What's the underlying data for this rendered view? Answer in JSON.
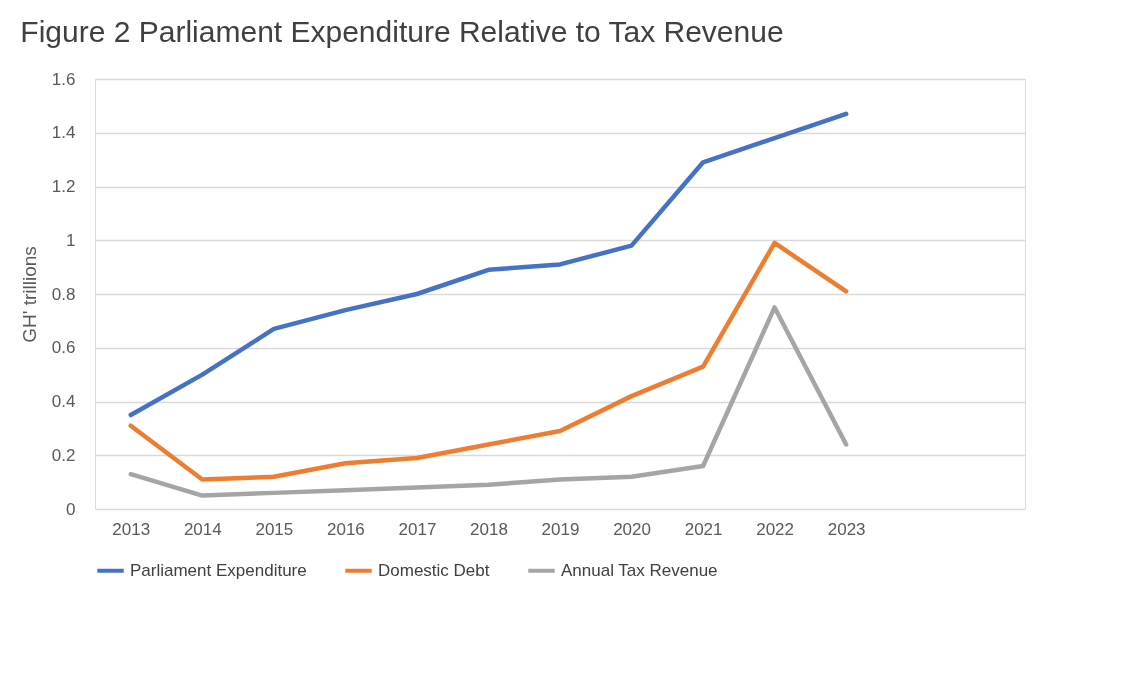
{
  "chart_data": {
    "type": "line",
    "title": "Figure 2 Parliament Expenditure Relative to Tax Revenue",
    "ylabel": "GH' trillions",
    "categories": [
      "2013",
      "2014",
      "2015",
      "2016",
      "2017",
      "2018",
      "2019",
      "2020",
      "2021",
      "2022",
      "2023",
      null,
      null
    ],
    "series": [
      {
        "name": "Parliament Expenditure",
        "color": "#4472c4",
        "values": [
          0.35,
          0.5,
          0.67,
          0.74,
          0.8,
          0.89,
          0.91,
          0.98,
          1.29,
          1.38,
          1.47,
          null,
          null
        ]
      },
      {
        "name": "Domestic Debt",
        "color": "#ed7d31",
        "values": [
          0.31,
          0.11,
          0.12,
          0.17,
          0.19,
          0.24,
          0.29,
          0.42,
          0.53,
          0.99,
          0.81,
          null,
          null
        ]
      },
      {
        "name": "Annual Tax Revenue",
        "color": "#a5a5a5",
        "values": [
          0.13,
          0.05,
          0.06,
          0.07,
          0.08,
          0.09,
          0.11,
          0.12,
          0.16,
          0.75,
          0.24,
          null,
          null
        ]
      }
    ],
    "ylim": [
      0,
      1.6
    ],
    "yticks": [
      0,
      0.2,
      0.4,
      0.6,
      0.8,
      1,
      1.2,
      1.4,
      1.6
    ],
    "grid": "y",
    "legend": "bottom",
    "marker": "none",
    "line_style": "solid"
  }
}
